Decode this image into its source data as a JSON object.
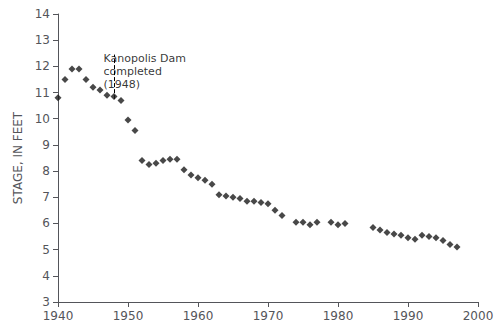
{
  "chart_data": {
    "type": "scatter",
    "x": [
      1940,
      1941,
      1942,
      1943,
      1944,
      1945,
      1946,
      1947,
      1948,
      1949,
      1950,
      1951,
      1952,
      1953,
      1954,
      1955,
      1956,
      1957,
      1958,
      1959,
      1960,
      1961,
      1962,
      1963,
      1964,
      1965,
      1966,
      1967,
      1968,
      1969,
      1970,
      1971,
      1972,
      1974,
      1975,
      1976,
      1977,
      1979,
      1980,
      1981,
      1985,
      1986,
      1987,
      1988,
      1989,
      1990,
      1991,
      1992,
      1993,
      1994,
      1995,
      1996,
      1997
    ],
    "values": [
      10.8,
      11.5,
      11.9,
      11.9,
      11.5,
      11.2,
      11.1,
      10.9,
      10.85,
      10.7,
      9.95,
      9.55,
      8.4,
      8.25,
      8.3,
      8.4,
      8.45,
      8.45,
      8.05,
      7.85,
      7.75,
      7.65,
      7.5,
      7.1,
      7.05,
      7.0,
      6.95,
      6.85,
      6.85,
      6.8,
      6.75,
      6.5,
      6.3,
      6.05,
      6.05,
      5.95,
      6.05,
      6.05,
      5.95,
      6.0,
      5.85,
      5.75,
      5.65,
      5.6,
      5.55,
      5.45,
      5.4,
      5.55,
      5.5,
      5.45,
      5.35,
      5.2,
      5.1
    ],
    "color": "#1a1a1a",
    "marker": "diamond",
    "ylabel": "STAGE, IN FEET",
    "xlim": [
      1940,
      2000
    ],
    "ylim": [
      3,
      14
    ],
    "xticks": [
      1940,
      1950,
      1960,
      1970,
      1980,
      1990,
      2000
    ],
    "yticks": [
      3,
      4,
      5,
      6,
      7,
      8,
      9,
      10,
      11,
      12,
      13,
      14
    ],
    "grid": false,
    "annotations": [
      {
        "text": "Kanopolis Dam\ncompleted\n(1948)",
        "x": 1946.5,
        "y": 12.55
      }
    ],
    "vlines": [
      {
        "x": 1948,
        "ymin": 10.75,
        "ymax": 12.45,
        "line_style": "dashed"
      }
    ]
  }
}
